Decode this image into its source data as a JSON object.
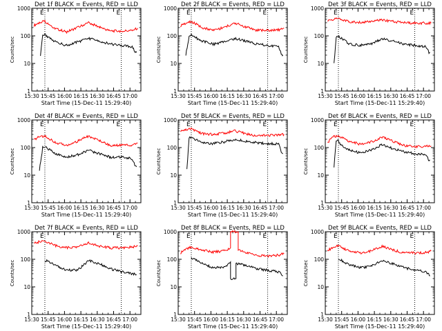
{
  "colors": {
    "events": "#000000",
    "lld": "#ff0000",
    "axis": "#000000",
    "marker": "#000000"
  },
  "shared": {
    "type": "line",
    "xlabel": "Start Time (15-Dec-11 15:29:40)",
    "ylabel": "Counts/sec",
    "yscale": "log",
    "ylim": [
      1,
      1000
    ],
    "ytick_labels": [
      "1",
      "10",
      "100",
      "1000"
    ],
    "xlim": [
      "15:30",
      "17:10"
    ],
    "xtick_labels": [
      "15:30",
      "15:45",
      "16:00",
      "16:15",
      "16:30",
      "16:45",
      "17:00"
    ],
    "markers": [
      {
        "time": "15:42",
        "label": "E"
      },
      {
        "time": "16:52",
        "label": "E"
      }
    ],
    "grid": false
  },
  "chart_data": [
    {
      "title": "Det 1f BLACK = Events, RED = LLD",
      "series": [
        {
          "name": "LLD",
          "x": [
            "15:32",
            "15:37",
            "15:42",
            "15:52",
            "16:02",
            "16:12",
            "16:22",
            "16:32",
            "16:42",
            "16:52",
            "17:02",
            "17:07"
          ],
          "values": [
            240,
            300,
            340,
            180,
            140,
            200,
            300,
            210,
            150,
            150,
            155,
            190
          ]
        },
        {
          "name": "Events",
          "x": [
            "15:38",
            "15:40",
            "15:42",
            "15:45",
            "15:52",
            "16:02",
            "16:12",
            "16:22",
            "16:32",
            "16:42",
            "16:52",
            "17:02",
            "17:05",
            "17:06"
          ],
          "values": [
            20,
            105,
            110,
            90,
            60,
            45,
            60,
            80,
            65,
            50,
            45,
            40,
            25,
            25
          ]
        }
      ]
    },
    {
      "title": "Det 2f BLACK = Events, RED = LLD",
      "series": [
        {
          "name": "LLD",
          "x": [
            "15:32",
            "15:37",
            "15:42",
            "15:52",
            "16:02",
            "16:12",
            "16:22",
            "16:32",
            "16:42",
            "16:52",
            "17:02",
            "17:07"
          ],
          "values": [
            230,
            290,
            330,
            200,
            160,
            200,
            290,
            210,
            160,
            160,
            165,
            190
          ]
        },
        {
          "name": "Events",
          "x": [
            "15:37",
            "15:40",
            "15:42",
            "15:45",
            "15:52",
            "16:02",
            "16:12",
            "16:22",
            "16:32",
            "16:42",
            "16:52",
            "17:02",
            "17:05",
            "17:06"
          ],
          "values": [
            20,
            100,
            105,
            90,
            65,
            50,
            60,
            80,
            65,
            50,
            45,
            40,
            20,
            20
          ]
        }
      ]
    },
    {
      "title": "Det 3f BLACK = Events, RED = LLD",
      "series": [
        {
          "name": "LLD",
          "x": [
            "15:32",
            "15:37",
            "15:42",
            "15:52",
            "16:02",
            "16:12",
            "16:22",
            "16:32",
            "16:42",
            "16:52",
            "17:02",
            "17:07"
          ],
          "values": [
            340,
            400,
            420,
            330,
            310,
            330,
            380,
            330,
            300,
            290,
            290,
            290
          ]
        },
        {
          "name": "Events",
          "x": [
            "15:38",
            "15:40",
            "15:42",
            "15:45",
            "15:52",
            "16:02",
            "16:12",
            "16:22",
            "16:32",
            "16:42",
            "16:52",
            "17:02",
            "17:05",
            "17:06"
          ],
          "values": [
            10,
            90,
            95,
            80,
            50,
            45,
            50,
            80,
            65,
            50,
            45,
            40,
            25,
            25
          ]
        }
      ]
    },
    {
      "title": "Det 4f BLACK = Events, RED = LLD",
      "series": [
        {
          "name": "LLD",
          "x": [
            "15:32",
            "15:37",
            "15:42",
            "15:52",
            "16:02",
            "16:12",
            "16:22",
            "16:32",
            "16:42",
            "16:52",
            "17:02",
            "17:07"
          ],
          "values": [
            190,
            250,
            260,
            150,
            120,
            170,
            260,
            180,
            120,
            120,
            125,
            145
          ]
        },
        {
          "name": "Events",
          "x": [
            "15:37",
            "15:40",
            "15:42",
            "15:45",
            "15:52",
            "16:02",
            "16:12",
            "16:22",
            "16:32",
            "16:42",
            "16:52",
            "17:02",
            "17:05",
            "17:06"
          ],
          "values": [
            15,
            100,
            110,
            90,
            60,
            45,
            55,
            80,
            60,
            45,
            45,
            40,
            20,
            20
          ]
        }
      ]
    },
    {
      "title": "Det 5f BLACK = Events, RED = LLD",
      "series": [
        {
          "name": "LLD",
          "x": [
            "15:32",
            "15:37",
            "15:42",
            "15:52",
            "16:02",
            "16:12",
            "16:22",
            "16:32",
            "16:42",
            "16:52",
            "17:02",
            "17:07"
          ],
          "values": [
            380,
            460,
            470,
            320,
            300,
            330,
            400,
            320,
            270,
            280,
            290,
            300
          ]
        },
        {
          "name": "Events",
          "x": [
            "15:38",
            "15:40",
            "15:42",
            "15:45",
            "15:52",
            "16:02",
            "16:12",
            "16:22",
            "16:32",
            "16:42",
            "16:52",
            "17:02",
            "17:05",
            "17:06"
          ],
          "values": [
            15,
            220,
            230,
            200,
            150,
            140,
            160,
            200,
            170,
            150,
            140,
            135,
            60,
            60
          ]
        }
      ]
    },
    {
      "title": "Det 6f BLACK = Events, RED = LLD",
      "series": [
        {
          "name": "LLD",
          "x": [
            "15:32",
            "15:37",
            "15:42",
            "15:52",
            "16:02",
            "16:12",
            "16:22",
            "16:32",
            "16:42",
            "16:52",
            "17:02",
            "17:07"
          ],
          "values": [
            150,
            250,
            260,
            170,
            130,
            160,
            240,
            170,
            120,
            110,
            110,
            115
          ]
        },
        {
          "name": "Events",
          "x": [
            "15:38",
            "15:40",
            "15:42",
            "15:45",
            "15:52",
            "16:02",
            "16:12",
            "16:22",
            "16:32",
            "16:42",
            "16:52",
            "17:02",
            "17:05",
            "17:06"
          ],
          "values": [
            20,
            180,
            170,
            120,
            80,
            65,
            80,
            130,
            90,
            70,
            60,
            55,
            35,
            35
          ]
        }
      ]
    },
    {
      "title": "Det 7f BLACK = Events, RED = LLD",
      "series": [
        {
          "name": "LLD",
          "x": [
            "15:32",
            "15:37",
            "15:42",
            "15:52",
            "16:02",
            "16:12",
            "16:22",
            "16:32",
            "16:42",
            "16:52",
            "17:02",
            "17:07"
          ],
          "values": [
            380,
            430,
            460,
            310,
            260,
            280,
            400,
            300,
            260,
            260,
            280,
            300
          ]
        },
        {
          "name": "Events",
          "x": [
            "15:42",
            "15:45",
            "15:52",
            "16:02",
            "16:12",
            "16:22",
            "16:32",
            "16:42",
            "16:52",
            "17:02",
            "17:06"
          ],
          "values": [
            90,
            85,
            60,
            40,
            40,
            90,
            70,
            45,
            35,
            30,
            28
          ]
        }
      ]
    },
    {
      "title": "Det 8f BLACK = Events, RED = LLD",
      "series": [
        {
          "name": "LLD",
          "x": [
            "15:32",
            "15:37",
            "15:42",
            "15:52",
            "16:02",
            "16:12",
            "16:18",
            "16:18",
            "16:25",
            "16:25",
            "16:32",
            "16:42",
            "16:52",
            "17:02",
            "17:07"
          ],
          "values": [
            170,
            230,
            280,
            220,
            180,
            200,
            260,
            1000,
            1000,
            220,
            170,
            140,
            130,
            140,
            160
          ]
        },
        {
          "name": "Events",
          "x": [
            "15:42",
            "15:45",
            "15:52",
            "16:02",
            "16:12",
            "16:18",
            "16:18",
            "16:23",
            "16:23",
            "16:32",
            "16:42",
            "16:52",
            "17:02",
            "17:06"
          ],
          "values": [
            110,
            100,
            70,
            50,
            50,
            80,
            20,
            20,
            70,
            60,
            45,
            40,
            35,
            25
          ]
        }
      ]
    },
    {
      "title": "Det 9f BLACK = Events, RED = LLD",
      "series": [
        {
          "name": "LLD",
          "x": [
            "15:32",
            "15:37",
            "15:42",
            "15:52",
            "16:02",
            "16:12",
            "16:22",
            "16:32",
            "16:42",
            "16:52",
            "17:02",
            "17:07"
          ],
          "values": [
            210,
            260,
            310,
            200,
            170,
            200,
            300,
            220,
            170,
            170,
            175,
            200
          ]
        },
        {
          "name": "Events",
          "x": [
            "15:42",
            "15:45",
            "15:52",
            "16:02",
            "16:12",
            "16:22",
            "16:32",
            "16:42",
            "16:52",
            "17:02",
            "17:06"
          ],
          "values": [
            100,
            90,
            65,
            50,
            55,
            90,
            70,
            50,
            40,
            35,
            25
          ]
        }
      ]
    }
  ]
}
